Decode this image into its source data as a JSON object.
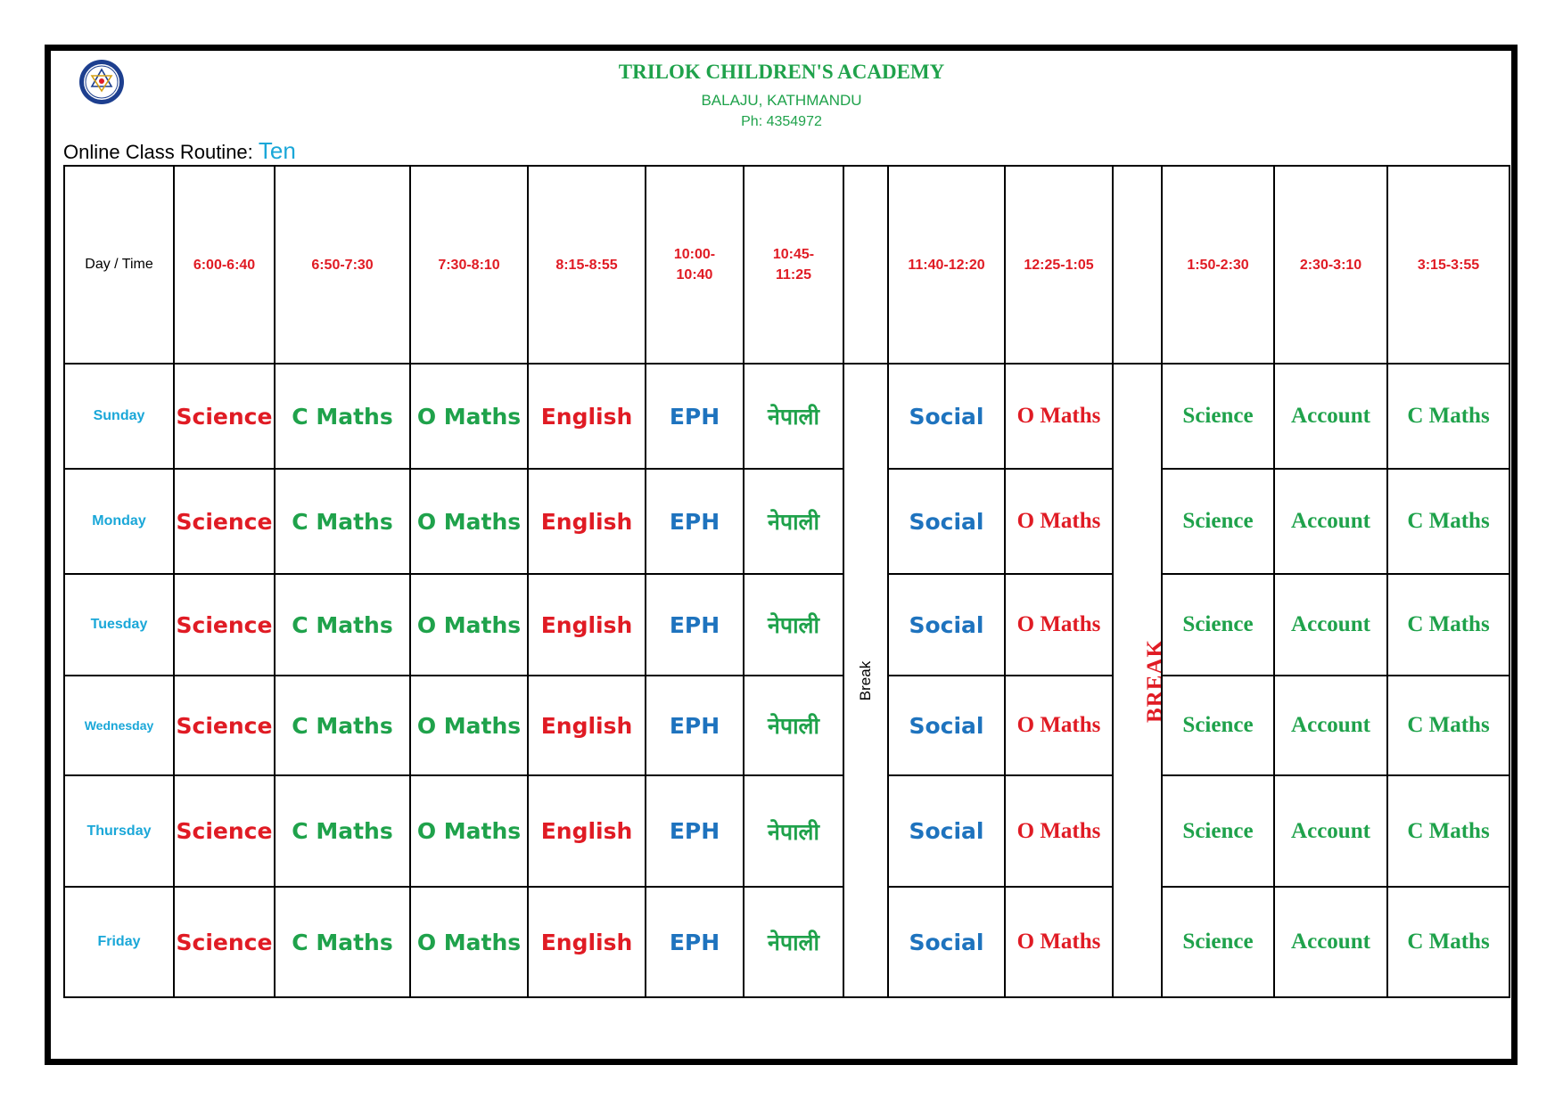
{
  "header": {
    "school_name": "TRILOK CHILDREN'S ACADEMY",
    "address": "BALAJU, KATHMANDU",
    "phone": "Ph: 4354972",
    "logo_icon": "school-emblem-icon"
  },
  "routine": {
    "title_prefix": "Online Class Routine: ",
    "class_name": "Ten"
  },
  "table": {
    "day_time_label": "Day / Time",
    "time_slots": [
      "6:00-6:40",
      "6:50-7:30",
      "7:30-8:10",
      "8:15-8:55",
      "10:00-\n10:40",
      "10:45-\n11:25",
      "11:40-12:20",
      "12:25-1:05",
      "1:50-2:30",
      "2:30-3:10",
      "3:15-3:55"
    ],
    "break_label_1": "Break",
    "break_label_2": "BREAK",
    "days": [
      {
        "day": "Sunday",
        "subjects": [
          "Science",
          "C Maths",
          "O Maths",
          "English",
          "EPH",
          "नेपाली",
          "Social",
          "O Maths",
          "Science",
          "Account",
          "C Maths"
        ]
      },
      {
        "day": "Monday",
        "subjects": [
          "Science",
          "C Maths",
          "O Maths",
          "English",
          "EPH",
          "नेपाली",
          "Social",
          "O Maths",
          "Science",
          "Account",
          "C Maths"
        ]
      },
      {
        "day": "Tuesday",
        "subjects": [
          "Science",
          "C Maths",
          "O Maths",
          "English",
          "EPH",
          "नेपाली",
          "Social",
          "O Maths",
          "Science",
          "Account",
          "C Maths"
        ]
      },
      {
        "day": "Wednesday",
        "subjects": [
          "Science",
          "C Maths",
          "O Maths",
          "English",
          "EPH",
          "नेपाली",
          "Social",
          "O Maths",
          "Science",
          "Account",
          "C Maths"
        ]
      },
      {
        "day": "Thursday",
        "subjects": [
          "Science",
          "C Maths",
          "O Maths",
          "English",
          "EPH",
          "नेपाली",
          "Social",
          "O Maths",
          "Science",
          "Account",
          "C Maths"
        ]
      },
      {
        "day": "Friday",
        "subjects": [
          "Science",
          "C Maths",
          "O Maths",
          "English",
          "EPH",
          "नेपाली",
          "Social",
          "O Maths",
          "Science",
          "Account",
          "C Maths"
        ]
      }
    ]
  },
  "colors": {
    "green": "#1fa24b",
    "red": "#e01b24",
    "blue": "#1e73be",
    "cyan": "#1aa7d8"
  }
}
